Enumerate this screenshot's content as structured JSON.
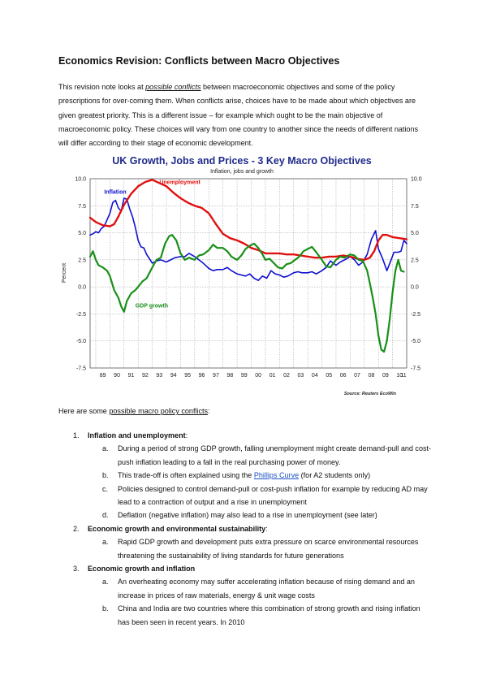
{
  "document": {
    "title": "Economics Revision: Conflicts between Macro Objectives",
    "intro": {
      "before": "This revision note looks at ",
      "emph": "possible conflicts",
      "after": " between macroeconomic objectives and some of the policy prescriptions for over-coming them. When conflicts arise, choices have to be made about which objectives are given greatest priority. This is a different issue – for example which ought to be the main objective of macroeconomic policy. These choices will vary from one country to another since the needs of different nations will differ according to their stage of economic development."
    },
    "conflicts_intro": {
      "before": "Here are some ",
      "link": "possible macro policy conflicts",
      "after": ":"
    },
    "items": [
      {
        "num": "1.",
        "title": "Inflation and unemployment",
        "suffix": ":",
        "subs": [
          {
            "letter": "a.",
            "text": "During a period of strong GDP growth, falling unemployment might create demand-pull and cost-push inflation leading to a fall in the real purchasing power of money."
          },
          {
            "letter": "b.",
            "before": "This trade-off is often explained using the ",
            "link": "Phillips Curve",
            "after": " (for A2 students only)"
          },
          {
            "letter": "c.",
            "text": "Policies designed to control demand-pull or cost-push inflation for example by reducing AD may lead to a contraction of output and a rise in unemployment"
          },
          {
            "letter": "d.",
            "text": "Deflation (negative inflation) may also lead to a rise in unemployment (see later)"
          }
        ]
      },
      {
        "num": "2.",
        "title": "Economic growth and environmental sustainability",
        "suffix": ":",
        "subs": [
          {
            "letter": "a.",
            "text": "Rapid GDP growth and development puts extra pressure on scarce environmental resources threatening the sustainability of living standards for future generations"
          }
        ]
      },
      {
        "num": "3.",
        "title": "Economic growth and inflation",
        "suffix": "",
        "subs": [
          {
            "letter": "a.",
            "text": "An overheating economy may suffer accelerating inflation because of rising demand and an increase in prices of raw materials, energy & unit wage costs"
          },
          {
            "letter": "b.",
            "text": "China and India are two countries where this combination of strong growth and rising inflation has been seen in recent years. In 2010"
          }
        ]
      }
    ]
  },
  "chart_data": {
    "type": "line",
    "title": "UK Growth, Jobs and Prices - 3 Key Macro Objectives",
    "subtitle": "Inflation, jobs and growth",
    "ylabel": "Percent",
    "source": "Source: Reuters EcoWin",
    "ylim": [
      -7.5,
      10
    ],
    "yticks": [
      "10.0",
      "7.5",
      "5.0",
      "2.5",
      "0.0",
      "-2.5",
      "-5.0",
      "-7.5"
    ],
    "ytick_values": [
      10,
      7.5,
      5,
      2.5,
      0,
      -2.5,
      -5,
      -7.5
    ],
    "xlim": [
      1988.6,
      2011.0
    ],
    "xticks": [
      "89",
      "90",
      "91",
      "92",
      "93",
      "94",
      "95",
      "96",
      "97",
      "98",
      "99",
      "00",
      "01",
      "02",
      "03",
      "04",
      "05",
      "06",
      "07",
      "08",
      "09",
      "10",
      "11"
    ],
    "grid": true,
    "colors": {
      "title": "#1f2a8a",
      "inflation": "#1010d0",
      "unemployment": "#e01010",
      "gdp": "#189018"
    },
    "series": [
      {
        "name": "Inflation",
        "key": "inflation",
        "points": [
          [
            1988.6,
            4.8
          ],
          [
            1988.8,
            4.9
          ],
          [
            1989.0,
            5.1
          ],
          [
            1989.2,
            5.0
          ],
          [
            1989.4,
            5.4
          ],
          [
            1989.6,
            5.6
          ],
          [
            1989.8,
            6.2
          ],
          [
            1990.0,
            6.8
          ],
          [
            1990.2,
            7.8
          ],
          [
            1990.4,
            8.0
          ],
          [
            1990.6,
            7.3
          ],
          [
            1990.8,
            7.0
          ],
          [
            1991.0,
            8.2
          ],
          [
            1991.2,
            8.1
          ],
          [
            1991.4,
            7.2
          ],
          [
            1991.6,
            6.5
          ],
          [
            1991.8,
            5.5
          ],
          [
            1992.0,
            4.3
          ],
          [
            1992.2,
            3.7
          ],
          [
            1992.4,
            3.6
          ],
          [
            1992.6,
            3.0
          ],
          [
            1992.8,
            2.6
          ],
          [
            1993.0,
            2.2
          ],
          [
            1993.3,
            2.4
          ],
          [
            1993.6,
            2.5
          ],
          [
            1994.0,
            2.3
          ],
          [
            1994.3,
            2.5
          ],
          [
            1994.6,
            2.7
          ],
          [
            1995.0,
            2.8
          ],
          [
            1995.3,
            2.8
          ],
          [
            1995.6,
            3.1
          ],
          [
            1996.0,
            2.8
          ],
          [
            1996.3,
            2.5
          ],
          [
            1996.6,
            2.2
          ],
          [
            1997.0,
            1.7
          ],
          [
            1997.3,
            1.5
          ],
          [
            1997.6,
            1.6
          ],
          [
            1998.0,
            1.6
          ],
          [
            1998.3,
            1.8
          ],
          [
            1998.6,
            1.5
          ],
          [
            1999.0,
            1.2
          ],
          [
            1999.3,
            1.1
          ],
          [
            1999.6,
            1.0
          ],
          [
            1999.9,
            1.2
          ],
          [
            2000.2,
            0.8
          ],
          [
            2000.5,
            0.6
          ],
          [
            2000.8,
            1.0
          ],
          [
            2001.1,
            0.8
          ],
          [
            2001.4,
            1.5
          ],
          [
            2001.7,
            1.2
          ],
          [
            2002.0,
            1.1
          ],
          [
            2002.3,
            0.9
          ],
          [
            2002.6,
            1.0
          ],
          [
            2003.0,
            1.3
          ],
          [
            2003.3,
            1.4
          ],
          [
            2003.6,
            1.3
          ],
          [
            2004.0,
            1.3
          ],
          [
            2004.3,
            1.4
          ],
          [
            2004.6,
            1.2
          ],
          [
            2005.0,
            1.5
          ],
          [
            2005.3,
            1.8
          ],
          [
            2005.6,
            2.4
          ],
          [
            2006.0,
            2.0
          ],
          [
            2006.3,
            2.3
          ],
          [
            2006.6,
            2.5
          ],
          [
            2007.0,
            2.8
          ],
          [
            2007.3,
            2.5
          ],
          [
            2007.6,
            2.0
          ],
          [
            2007.9,
            2.3
          ],
          [
            2008.2,
            3.0
          ],
          [
            2008.5,
            4.4
          ],
          [
            2008.8,
            5.2
          ],
          [
            2009.0,
            3.5
          ],
          [
            2009.3,
            2.6
          ],
          [
            2009.6,
            1.5
          ],
          [
            2009.9,
            2.5
          ],
          [
            2010.1,
            3.2
          ],
          [
            2010.4,
            3.2
          ],
          [
            2010.6,
            3.3
          ],
          [
            2010.8,
            4.3
          ],
          [
            2011.0,
            4.0
          ]
        ]
      },
      {
        "name": "Unemployment",
        "key": "unemployment",
        "points": [
          [
            1988.6,
            6.4
          ],
          [
            1989.0,
            6.0
          ],
          [
            1989.5,
            5.7
          ],
          [
            1990.0,
            5.6
          ],
          [
            1990.3,
            5.8
          ],
          [
            1990.6,
            6.5
          ],
          [
            1991.0,
            7.6
          ],
          [
            1991.5,
            8.6
          ],
          [
            1992.0,
            9.3
          ],
          [
            1992.5,
            9.7
          ],
          [
            1993.0,
            9.9
          ],
          [
            1993.5,
            9.6
          ],
          [
            1994.0,
            9.3
          ],
          [
            1994.5,
            8.7
          ],
          [
            1995.0,
            8.2
          ],
          [
            1995.5,
            7.8
          ],
          [
            1996.0,
            7.5
          ],
          [
            1996.5,
            7.3
          ],
          [
            1997.0,
            6.8
          ],
          [
            1997.5,
            5.8
          ],
          [
            1998.0,
            4.9
          ],
          [
            1998.5,
            4.5
          ],
          [
            1999.0,
            4.3
          ],
          [
            1999.5,
            4.0
          ],
          [
            2000.0,
            3.6
          ],
          [
            2000.5,
            3.4
          ],
          [
            2001.0,
            3.1
          ],
          [
            2001.5,
            3.1
          ],
          [
            2002.0,
            3.1
          ],
          [
            2002.5,
            3.0
          ],
          [
            2003.0,
            3.0
          ],
          [
            2003.5,
            2.9
          ],
          [
            2004.0,
            2.8
          ],
          [
            2004.5,
            2.7
          ],
          [
            2005.0,
            2.7
          ],
          [
            2005.5,
            2.8
          ],
          [
            2006.0,
            2.8
          ],
          [
            2006.5,
            2.9
          ],
          [
            2007.0,
            2.8
          ],
          [
            2007.5,
            2.6
          ],
          [
            2008.0,
            2.5
          ],
          [
            2008.4,
            2.7
          ],
          [
            2008.7,
            3.3
          ],
          [
            2009.0,
            4.3
          ],
          [
            2009.3,
            4.8
          ],
          [
            2009.6,
            4.8
          ],
          [
            2010.0,
            4.6
          ],
          [
            2010.5,
            4.5
          ],
          [
            2011.0,
            4.4
          ]
        ]
      },
      {
        "name": "GDP growth",
        "key": "gdp",
        "points": [
          [
            1988.6,
            2.8
          ],
          [
            1988.8,
            3.3
          ],
          [
            1989.0,
            2.5
          ],
          [
            1989.2,
            2.0
          ],
          [
            1989.5,
            1.8
          ],
          [
            1989.8,
            1.5
          ],
          [
            1990.0,
            1.0
          ],
          [
            1990.3,
            -0.3
          ],
          [
            1990.6,
            -1.0
          ],
          [
            1990.8,
            -1.8
          ],
          [
            1991.0,
            -2.3
          ],
          [
            1991.2,
            -1.3
          ],
          [
            1991.5,
            -0.6
          ],
          [
            1991.8,
            -0.3
          ],
          [
            1992.0,
            0.0
          ],
          [
            1992.3,
            0.5
          ],
          [
            1992.6,
            0.8
          ],
          [
            1993.0,
            1.8
          ],
          [
            1993.3,
            2.5
          ],
          [
            1993.6,
            2.7
          ],
          [
            1993.9,
            4.0
          ],
          [
            1994.2,
            4.7
          ],
          [
            1994.4,
            4.8
          ],
          [
            1994.7,
            4.3
          ],
          [
            1995.0,
            3.1
          ],
          [
            1995.3,
            2.5
          ],
          [
            1995.6,
            2.7
          ],
          [
            1996.0,
            2.5
          ],
          [
            1996.3,
            2.9
          ],
          [
            1996.6,
            3.0
          ],
          [
            1997.0,
            3.4
          ],
          [
            1997.3,
            3.9
          ],
          [
            1997.6,
            3.6
          ],
          [
            1998.0,
            3.6
          ],
          [
            1998.3,
            3.3
          ],
          [
            1998.6,
            2.8
          ],
          [
            1999.0,
            2.5
          ],
          [
            1999.3,
            2.9
          ],
          [
            1999.6,
            3.5
          ],
          [
            1999.9,
            3.8
          ],
          [
            2000.2,
            4.0
          ],
          [
            2000.5,
            3.6
          ],
          [
            2000.8,
            3.0
          ],
          [
            2001.0,
            2.5
          ],
          [
            2001.3,
            2.6
          ],
          [
            2001.6,
            2.2
          ],
          [
            2001.9,
            1.8
          ],
          [
            2002.2,
            1.7
          ],
          [
            2002.5,
            2.1
          ],
          [
            2002.8,
            2.2
          ],
          [
            2003.1,
            2.5
          ],
          [
            2003.4,
            2.8
          ],
          [
            2003.7,
            3.3
          ],
          [
            2004.0,
            3.5
          ],
          [
            2004.3,
            3.7
          ],
          [
            2004.6,
            3.2
          ],
          [
            2005.0,
            2.5
          ],
          [
            2005.3,
            1.9
          ],
          [
            2005.6,
            1.8
          ],
          [
            2006.0,
            2.5
          ],
          [
            2006.3,
            2.8
          ],
          [
            2006.6,
            2.7
          ],
          [
            2007.0,
            3.0
          ],
          [
            2007.3,
            2.9
          ],
          [
            2007.6,
            2.5
          ],
          [
            2007.9,
            2.4
          ],
          [
            2008.2,
            1.5
          ],
          [
            2008.4,
            0.3
          ],
          [
            2008.6,
            -1.0
          ],
          [
            2008.8,
            -2.5
          ],
          [
            2009.0,
            -4.5
          ],
          [
            2009.2,
            -5.8
          ],
          [
            2009.4,
            -6.0
          ],
          [
            2009.6,
            -5.0
          ],
          [
            2009.8,
            -3.0
          ],
          [
            2010.0,
            -0.5
          ],
          [
            2010.2,
            1.5
          ],
          [
            2010.4,
            2.5
          ],
          [
            2010.6,
            1.5
          ],
          [
            2010.8,
            1.4
          ]
        ]
      }
    ],
    "labels": [
      {
        "series": "inflation",
        "text": "Inflation",
        "x": 1989.6,
        "y": 8.6
      },
      {
        "series": "unemployment",
        "text": "Unemployment",
        "x": 1993.5,
        "y": 9.5
      },
      {
        "series": "gdp",
        "text": "GDP growth",
        "x": 1991.8,
        "y": -1.9
      }
    ]
  }
}
